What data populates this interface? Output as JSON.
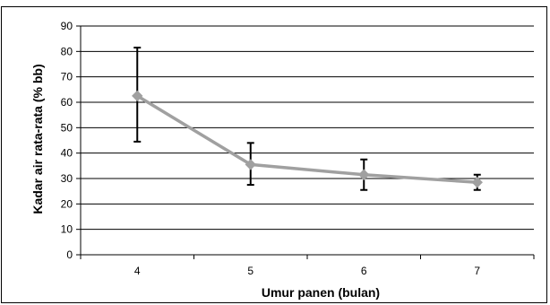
{
  "chart_data": {
    "type": "line",
    "xlabel": "Umur panen (bulan)",
    "ylabel": "Kadar air rata-rata (% bb)",
    "categories": [
      "4",
      "5",
      "6",
      "7"
    ],
    "ylim": [
      0,
      90
    ],
    "yticks": [
      0,
      10,
      20,
      30,
      40,
      50,
      60,
      70,
      80,
      90
    ],
    "grid": true,
    "series": [
      {
        "values": [
          62.5,
          35.5,
          31.5,
          28.5
        ],
        "error_low": [
          44.5,
          27.5,
          25.5,
          25.5
        ],
        "error_high": [
          81.5,
          44.0,
          37.5,
          31.5
        ],
        "color": "#a0a0a0",
        "marker": "diamond"
      }
    ],
    "error_bar_color": "#000000",
    "gridline_color": "#000000"
  }
}
